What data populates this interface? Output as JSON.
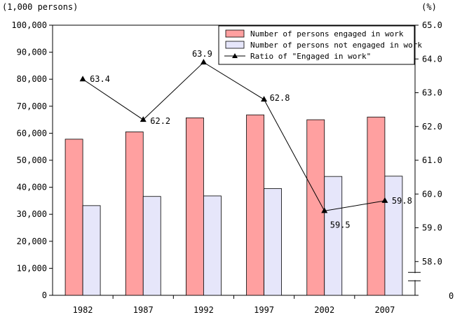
{
  "chart_data": {
    "type": "bar",
    "categories": [
      "1982",
      "1987",
      "1992",
      "1997",
      "2002",
      "2007"
    ],
    "series": [
      {
        "name": "Number of persons engaged in work",
        "axis": "left",
        "color": "#ffa0a0",
        "values": [
          57800,
          60500,
          65700,
          66800,
          65000,
          66000
        ]
      },
      {
        "name": "Number of persons not engaged in work",
        "axis": "left",
        "color": "#e6e6fa",
        "values": [
          33200,
          36600,
          36800,
          39500,
          44000,
          44100
        ]
      },
      {
        "name": "Ratio of \"Engaged in work\"",
        "axis": "right",
        "type": "line",
        "marker": "triangle",
        "values": [
          63.4,
          62.2,
          63.9,
          62.8,
          59.5,
          59.8
        ],
        "value_labels": [
          "63.4",
          "62.2",
          "63.9",
          "62.8",
          "59.5",
          "59.8"
        ]
      }
    ],
    "y_left": {
      "label": "(1,000  persons)",
      "ylim": [
        0,
        100000
      ],
      "ticks": [
        "0",
        "10,000",
        "20,000",
        "30,000",
        "40,000",
        "50,000",
        "60,000",
        "70,000",
        "80,000",
        "90,000",
        "100,000"
      ]
    },
    "y_right": {
      "label": "(%)",
      "ylim": [
        57.0,
        65.0
      ],
      "ticks": [
        "58.0",
        "59.0",
        "60.0",
        "61.0",
        "62.0",
        "63.0",
        "64.0",
        "65.0"
      ],
      "bottom_label": "0",
      "axis_break": true
    },
    "legend": {
      "position": "top-right",
      "items": [
        "Number of persons engaged in work",
        "Number of persons not engaged in work",
        "Ratio of \"Engaged in work\""
      ]
    },
    "grid": false
  }
}
